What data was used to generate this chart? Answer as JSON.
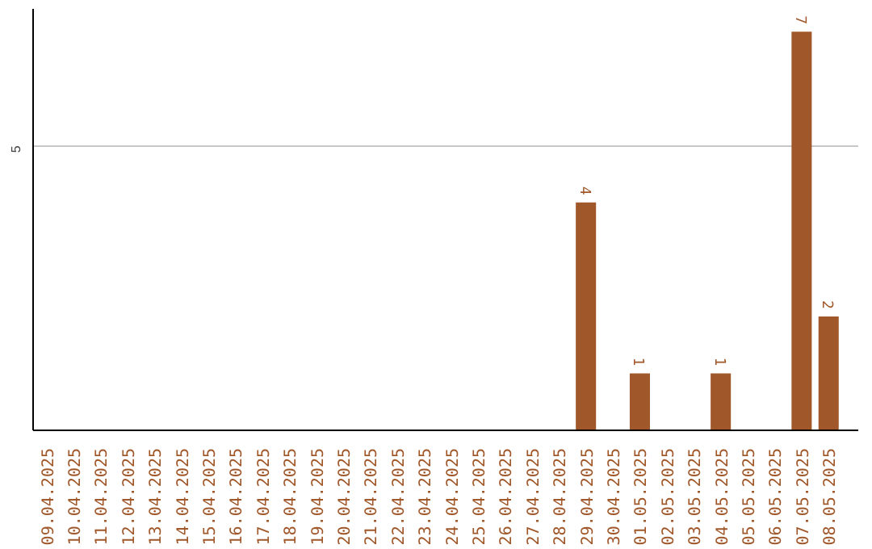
{
  "chart_data": {
    "type": "bar",
    "categories": [
      "09.04.2025",
      "10.04.2025",
      "11.04.2025",
      "12.04.2025",
      "13.04.2025",
      "14.04.2025",
      "15.04.2025",
      "16.04.2025",
      "17.04.2025",
      "18.04.2025",
      "19.04.2025",
      "20.04.2025",
      "21.04.2025",
      "22.04.2025",
      "23.04.2025",
      "24.04.2025",
      "25.04.2025",
      "26.04.2025",
      "27.04.2025",
      "28.04.2025",
      "29.04.2025",
      "30.04.2025",
      "01.05.2025",
      "02.05.2025",
      "03.05.2025",
      "04.05.2025",
      "05.05.2025",
      "06.05.2025",
      "07.05.2025",
      "08.05.2025"
    ],
    "values": [
      null,
      null,
      null,
      null,
      null,
      null,
      null,
      null,
      null,
      null,
      null,
      null,
      null,
      null,
      null,
      null,
      null,
      null,
      null,
      null,
      4,
      null,
      1,
      null,
      null,
      1,
      null,
      null,
      7,
      2
    ],
    "data_labels": true,
    "color": "#a0582a",
    "ylim": [
      0,
      7.4
    ],
    "yticks": [
      5
    ],
    "grid": "y"
  }
}
